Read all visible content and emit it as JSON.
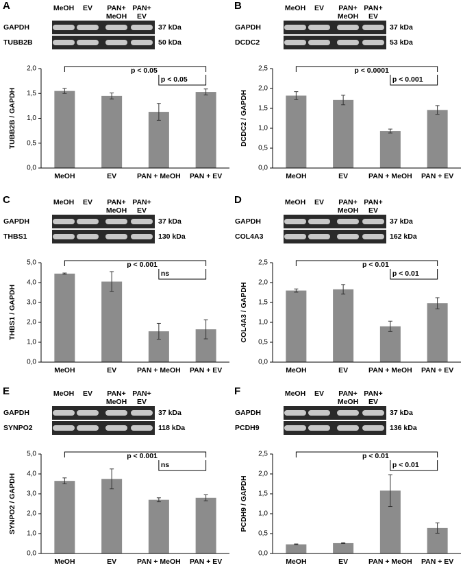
{
  "chart_data": [
    {
      "type": "bar",
      "panel": "A",
      "lanes": [
        [
          "MeOH"
        ],
        [
          "EV"
        ],
        [
          "PAN+",
          "MeOH"
        ],
        [
          "PAN+",
          "EV"
        ]
      ],
      "blots": [
        {
          "protein": "GAPDH",
          "size": "37 kDa"
        },
        {
          "protein": "TUBB2B",
          "size": "50 kDa"
        }
      ],
      "ylabel": "TUBB2B / GAPDH",
      "categories": [
        "MeOH",
        "EV",
        "PAN + MeOH",
        "PAN + EV"
      ],
      "series": [
        {
          "color": "#8c8c8c",
          "values": [
            1.55,
            1.45,
            1.13,
            1.53
          ],
          "errors": [
            0.05,
            0.06,
            0.17,
            0.06
          ]
        }
      ],
      "ylim": [
        0,
        2
      ],
      "yticks": [
        {
          "value": 0,
          "label": "0,0"
        },
        {
          "value": 0.5,
          "label": "0,5"
        },
        {
          "value": 1,
          "label": "1,0"
        },
        {
          "value": 1.5,
          "label": "1,5"
        },
        {
          "value": 2,
          "label": "2,0"
        }
      ],
      "brackets": [
        {
          "between": [
            "MeOH",
            "PAN + EV"
          ],
          "label": "p < 0.05"
        },
        {
          "between": [
            "PAN + MeOH",
            "PAN + EV"
          ],
          "label": "p < 0.05"
        }
      ]
    },
    {
      "type": "bar",
      "panel": "B",
      "lanes": [
        [
          "MeOH"
        ],
        [
          "EV"
        ],
        [
          "PAN+",
          "MeOH"
        ],
        [
          "PAN+",
          "EV"
        ]
      ],
      "blots": [
        {
          "protein": "GAPDH",
          "size": "37 kDa"
        },
        {
          "protein": "DCDC2",
          "size": "53 kDa"
        }
      ],
      "ylabel": "DCDC2 / GAPDH",
      "categories": [
        "MeOH",
        "EV",
        "PAN + MeOH",
        "PAN + EV"
      ],
      "series": [
        {
          "color": "#8c8c8c",
          "values": [
            1.82,
            1.71,
            0.93,
            1.46
          ],
          "errors": [
            0.1,
            0.12,
            0.05,
            0.11
          ]
        }
      ],
      "ylim": [
        0,
        2.5
      ],
      "yticks": [
        {
          "value": 0,
          "label": "0,0"
        },
        {
          "value": 0.5,
          "label": "0,5"
        },
        {
          "value": 1,
          "label": "1,0"
        },
        {
          "value": 1.5,
          "label": "1,5"
        },
        {
          "value": 2,
          "label": "2,0"
        },
        {
          "value": 2.5,
          "label": "2,5"
        }
      ],
      "brackets": [
        {
          "between": [
            "MeOH",
            "PAN + EV"
          ],
          "label": "p < 0.0001"
        },
        {
          "between": [
            "PAN + MeOH",
            "PAN + EV"
          ],
          "label": "p < 0.001"
        }
      ]
    },
    {
      "type": "bar",
      "panel": "C",
      "lanes": [
        [
          "MeOH"
        ],
        [
          "EV"
        ],
        [
          "PAN+",
          "MeOH"
        ],
        [
          "PAN+",
          "EV"
        ]
      ],
      "blots": [
        {
          "protein": "GAPDH",
          "size": "37 kDa"
        },
        {
          "protein": "THBS1",
          "size": "130 kDa"
        }
      ],
      "ylabel": "THBS1 / GAPDH",
      "categories": [
        "MeOH",
        "EV",
        "PAN + MeOH",
        "PAN + EV"
      ],
      "series": [
        {
          "color": "#8c8c8c",
          "values": [
            4.45,
            4.05,
            1.55,
            1.65
          ],
          "errors": [
            0.03,
            0.5,
            0.4,
            0.48
          ]
        }
      ],
      "ylim": [
        0,
        5
      ],
      "yticks": [
        {
          "value": 0,
          "label": "0,0"
        },
        {
          "value": 1,
          "label": "1,0"
        },
        {
          "value": 2,
          "label": "2,0"
        },
        {
          "value": 3,
          "label": "3,0"
        },
        {
          "value": 4,
          "label": "4,0"
        },
        {
          "value": 5,
          "label": "5,0"
        }
      ],
      "brackets": [
        {
          "between": [
            "MeOH",
            "PAN + EV"
          ],
          "label": "p < 0.001"
        },
        {
          "between": [
            "PAN + MeOH",
            "PAN + EV"
          ],
          "label": "ns"
        }
      ]
    },
    {
      "type": "bar",
      "panel": "D",
      "lanes": [
        [
          "MeOH"
        ],
        [
          "EV"
        ],
        [
          "PAN+",
          "MeOH"
        ],
        [
          "PAN+",
          "EV"
        ]
      ],
      "blots": [
        {
          "protein": "GAPDH",
          "size": "37 kDa"
        },
        {
          "protein": "COL4A3",
          "size": "162 kDa"
        }
      ],
      "ylabel": "COL4A3 / GAPDH",
      "categories": [
        "MeOH",
        "EV",
        "PAN + MeOH",
        "PAN + EV"
      ],
      "series": [
        {
          "color": "#8c8c8c",
          "values": [
            1.8,
            1.83,
            0.9,
            1.48
          ],
          "errors": [
            0.04,
            0.12,
            0.13,
            0.14
          ]
        }
      ],
      "ylim": [
        0,
        2.5
      ],
      "yticks": [
        {
          "value": 0,
          "label": "0,0"
        },
        {
          "value": 0.5,
          "label": "0,5"
        },
        {
          "value": 1,
          "label": "1,0"
        },
        {
          "value": 1.5,
          "label": "1,5"
        },
        {
          "value": 2,
          "label": "2,0"
        },
        {
          "value": 2.5,
          "label": "2,5"
        }
      ],
      "brackets": [
        {
          "between": [
            "MeOH",
            "PAN + EV"
          ],
          "label": "p < 0.01"
        },
        {
          "between": [
            "PAN + MeOH",
            "PAN + EV"
          ],
          "label": "p < 0.01"
        }
      ]
    },
    {
      "type": "bar",
      "panel": "E",
      "lanes": [
        [
          "MeOH"
        ],
        [
          "EV"
        ],
        [
          "PAN+",
          "MeOH"
        ],
        [
          "PAN+",
          "EV"
        ]
      ],
      "blots": [
        {
          "protein": "GAPDH",
          "size": "37 kDa"
        },
        {
          "protein": "SYNPO2",
          "size": "118 kDa"
        }
      ],
      "ylabel": "SYNPO2 / GAPDH",
      "categories": [
        "MeOH",
        "EV",
        "PAN + MeOH",
        "PAN + EV"
      ],
      "series": [
        {
          "color": "#8c8c8c",
          "values": [
            3.65,
            3.75,
            2.7,
            2.8
          ],
          "errors": [
            0.15,
            0.5,
            0.1,
            0.15
          ]
        }
      ],
      "ylim": [
        0,
        5
      ],
      "yticks": [
        {
          "value": 0,
          "label": "0,0"
        },
        {
          "value": 1,
          "label": "1,0"
        },
        {
          "value": 2,
          "label": "2,0"
        },
        {
          "value": 3,
          "label": "3,0"
        },
        {
          "value": 4,
          "label": "4,0"
        },
        {
          "value": 5,
          "label": "5,0"
        }
      ],
      "brackets": [
        {
          "between": [
            "MeOH",
            "PAN + EV"
          ],
          "label": "p < 0.001"
        },
        {
          "between": [
            "PAN + MeOH",
            "PAN + EV"
          ],
          "label": "ns"
        }
      ]
    },
    {
      "type": "bar",
      "panel": "F",
      "lanes": [
        [
          "MeOH"
        ],
        [
          "EV"
        ],
        [
          "PAN+",
          "MeOH"
        ],
        [
          "PAN+",
          "EV"
        ]
      ],
      "blots": [
        {
          "protein": "GAPDH",
          "size": "37 kDa"
        },
        {
          "protein": "PCDH9",
          "size": "136 kDa"
        }
      ],
      "ylabel": "PCDH9 / GAPDH",
      "categories": [
        "MeOH",
        "EV",
        "PAN + MeOH",
        "PAN + EV"
      ],
      "series": [
        {
          "color": "#8c8c8c",
          "values": [
            0.23,
            0.26,
            1.58,
            0.64
          ],
          "errors": [
            0.01,
            0.01,
            0.4,
            0.13
          ]
        }
      ],
      "ylim": [
        0,
        2.5
      ],
      "yticks": [
        {
          "value": 0,
          "label": "0,0"
        },
        {
          "value": 0.5,
          "label": "0,5"
        },
        {
          "value": 1,
          "label": "1,0"
        },
        {
          "value": 1.5,
          "label": "1,5"
        },
        {
          "value": 2,
          "label": "2,0"
        },
        {
          "value": 2.5,
          "label": "2,5"
        }
      ],
      "brackets": [
        {
          "between": [
            "MeOH",
            "PAN + EV"
          ],
          "label": "p < 0.01"
        },
        {
          "between": [
            "PAN + MeOH",
            "PAN + EV"
          ],
          "label": "p < 0.01"
        }
      ]
    }
  ]
}
